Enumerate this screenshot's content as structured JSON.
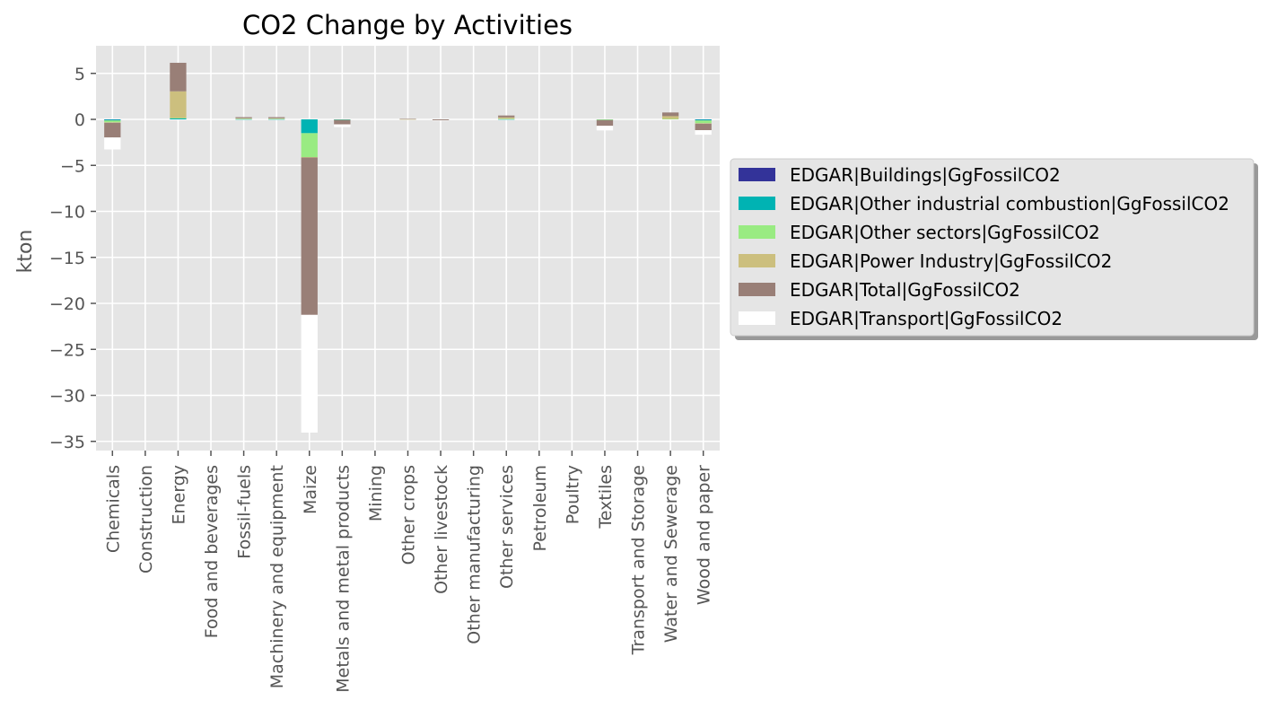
{
  "chart_data": {
    "type": "bar",
    "stacked": true,
    "title": "CO2 Change by Activities",
    "xlabel": "",
    "ylabel": "kton",
    "ylim": [
      -36,
      8
    ],
    "yticks": [
      5,
      0,
      -5,
      -10,
      -15,
      -20,
      -25,
      -30,
      -35
    ],
    "grid": true,
    "legend_placement": "right",
    "categories": [
      "Chemicals",
      "Construction",
      "Energy",
      "Food and beverages",
      "Fossil-fuels",
      "Machinery and equipment",
      "Maize",
      "Metals and metal products",
      "Mining",
      "Other crops",
      "Other livestock",
      "Other manufacturing",
      "Other services",
      "Petroleum",
      "Poultry",
      "Textiles",
      "Transport and Storage",
      "Water and Sewerage",
      "Wood and paper"
    ],
    "series": [
      {
        "name": "EDGAR|Buildings|GgFossilCO2",
        "color": "#333399",
        "values": [
          -0.02,
          0,
          0,
          0,
          0,
          0,
          0,
          -0.02,
          0,
          0,
          0,
          0,
          0,
          0,
          0,
          0,
          0,
          0,
          -0.02
        ]
      },
      {
        "name": "EDGAR|Other industrial combustion|GgFossilCO2",
        "color": "#00b3b3",
        "values": [
          -0.1,
          0,
          0.1,
          0,
          0.02,
          0.02,
          -1.5,
          -0.02,
          0,
          0,
          0,
          0,
          0.02,
          0,
          0,
          -0.02,
          0,
          0,
          -0.1
        ]
      },
      {
        "name": "EDGAR|Other sectors|GgFossilCO2",
        "color": "#99eb82",
        "values": [
          -0.2,
          0,
          0.05,
          0,
          0.05,
          0.05,
          -2.6,
          -0.03,
          0,
          0,
          0,
          0,
          0.05,
          0,
          0,
          -0.03,
          0,
          0.05,
          -0.3
        ]
      },
      {
        "name": "EDGAR|Power Industry|GgFossilCO2",
        "color": "#ccbf7e",
        "values": [
          -0.05,
          0,
          2.9,
          0,
          0.05,
          0.05,
          -0.05,
          -0.02,
          0,
          0.02,
          0,
          0,
          0.15,
          0,
          0,
          -0.05,
          0,
          0.3,
          -0.05
        ]
      },
      {
        "name": "EDGAR|Total|GgFossilCO2",
        "color": "#997f77",
        "values": [
          -1.6,
          0,
          3.1,
          0,
          0.12,
          0.12,
          -17.1,
          -0.45,
          0,
          0.05,
          -0.1,
          0,
          0.2,
          0,
          0,
          -0.6,
          0,
          0.4,
          -0.7
        ]
      },
      {
        "name": "EDGAR|Transport|GgFossilCO2",
        "color": "#ffffff",
        "values": [
          -1.3,
          0,
          0,
          0,
          0,
          0,
          -12.8,
          -0.3,
          0,
          0,
          -0.05,
          0,
          0,
          0,
          0,
          -0.5,
          0,
          0,
          -0.5
        ]
      }
    ]
  }
}
